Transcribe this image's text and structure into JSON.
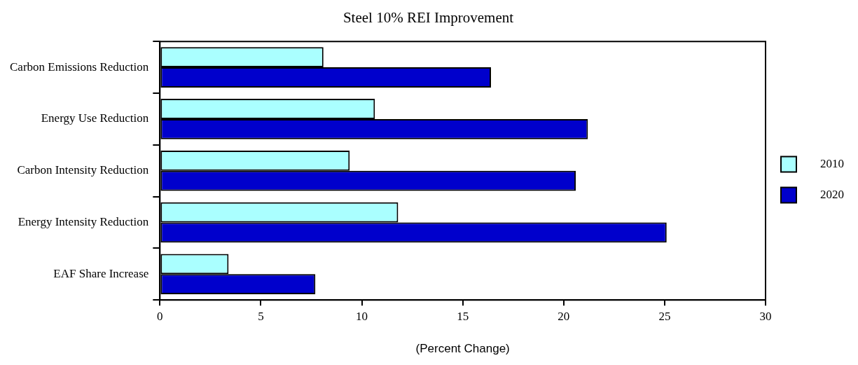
{
  "chart_data": {
    "type": "bar",
    "orientation": "horizontal",
    "title": "Steel 10% REI Improvement",
    "xlabel": "(Percent Change)",
    "categories": [
      "Carbon Emissions Reduction",
      "Energy Use Reduction",
      "Carbon Intensity Reduction",
      "Energy Intensity Reduction",
      "EAF Share Increase"
    ],
    "series": [
      {
        "name": "2010",
        "color": "#aaffff",
        "values": [
          8.1,
          10.65,
          9.4,
          11.8,
          3.4
        ]
      },
      {
        "name": "2020",
        "color": "#0000cc",
        "values": [
          16.4,
          21.2,
          20.6,
          25.1,
          7.7
        ]
      }
    ],
    "xlim": [
      0,
      30
    ],
    "xticks": [
      0,
      5,
      10,
      15,
      20,
      25,
      30
    ],
    "grid": false,
    "legend": "right"
  }
}
